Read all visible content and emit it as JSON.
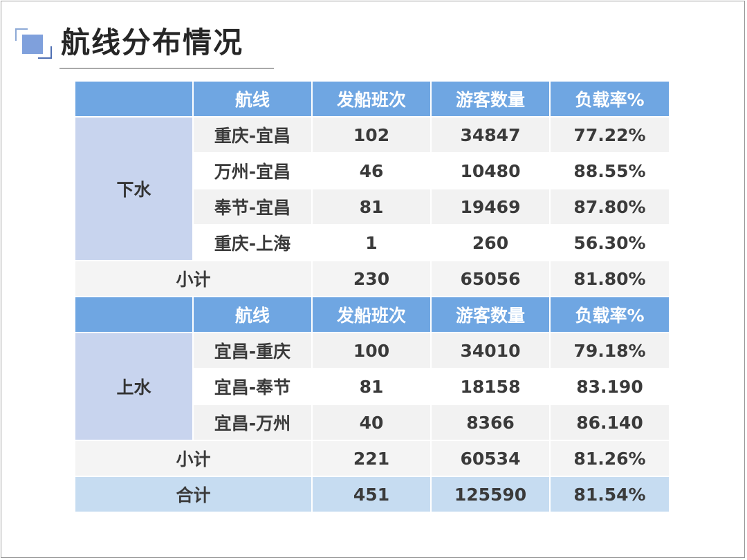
{
  "title": "航线分布情况",
  "colors": {
    "header_bg": "#6fa6e2",
    "group_bg": "#c8d4ee",
    "total_bg": "#c6dcf1",
    "title_icon": "#7fa0dc"
  },
  "icon": "stacked-squares-icon",
  "columns": [
    "航线",
    "发船班次",
    "游客数量",
    "负载率%"
  ],
  "downstream": {
    "label": "下水",
    "rows": [
      {
        "route": "重庆-宜昌",
        "sailings": "102",
        "visitors": "34847",
        "load": "77.22%"
      },
      {
        "route": "万州-宜昌",
        "sailings": "46",
        "visitors": "10480",
        "load": "88.55%"
      },
      {
        "route": "奉节-宜昌",
        "sailings": "81",
        "visitors": "19469",
        "load": "87.80%"
      },
      {
        "route": "重庆-上海",
        "sailings": "1",
        "visitors": "260",
        "load": "56.30%"
      }
    ],
    "subtotal": {
      "label": "小计",
      "sailings": "230",
      "visitors": "65056",
      "load": "81.80%"
    }
  },
  "upstream": {
    "label": "上水",
    "rows": [
      {
        "route": "宜昌-重庆",
        "sailings": "100",
        "visitors": "34010",
        "load": "79.18%"
      },
      {
        "route": "宜昌-奉节",
        "sailings": "81",
        "visitors": "18158",
        "load": "83.190"
      },
      {
        "route": "宜昌-万州",
        "sailings": "40",
        "visitors": "8366",
        "load": "86.140"
      }
    ],
    "subtotal": {
      "label": "小计",
      "sailings": "221",
      "visitors": "60534",
      "load": "81.26%"
    }
  },
  "total": {
    "label": "合计",
    "sailings": "451",
    "visitors": "125590",
    "load": "81.54%"
  }
}
